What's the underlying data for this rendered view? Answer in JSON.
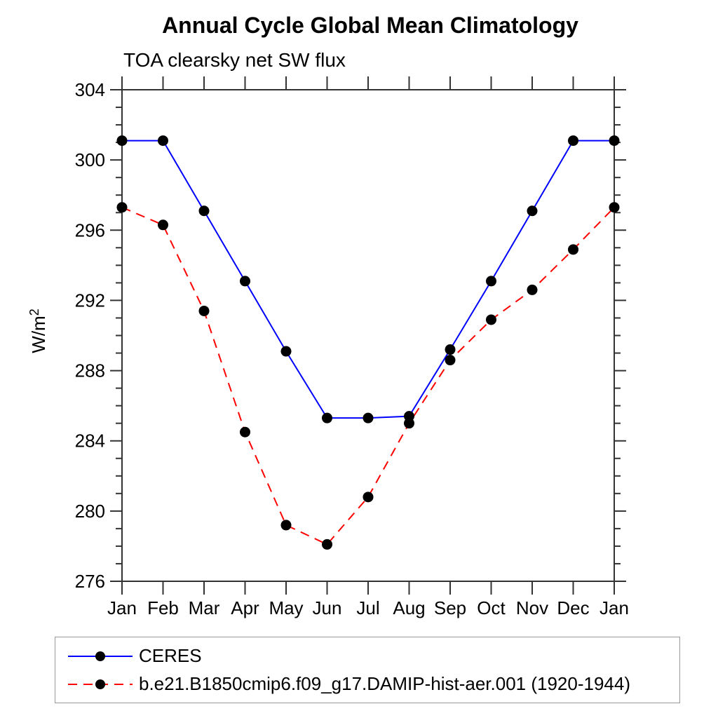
{
  "chart_data": {
    "type": "line",
    "title": "Annual Cycle Global Mean Climatology",
    "subtitle": "TOA clearsky net SW flux",
    "ylabel": "W/m",
    "ylabel_superscript": "2",
    "xlabel": "",
    "x_labels": [
      "Jan",
      "Feb",
      "Mar",
      "Apr",
      "May",
      "Jun",
      "Jul",
      "Aug",
      "Sep",
      "Oct",
      "Nov",
      "Dec",
      "Jan"
    ],
    "ylim": [
      276,
      304
    ],
    "ytick_major_step": 4,
    "ytick_minor_step": 1,
    "ytick_major_labels": [
      "276",
      "280",
      "284",
      "288",
      "292",
      "296",
      "300",
      "304"
    ],
    "grid": false,
    "legend_position": "bottom-left-box",
    "marker": "filled-circle",
    "marker_color": "#000000",
    "axis_color": "#333333",
    "series": [
      {
        "id": "ceres",
        "name": "CERES",
        "color": "#0000ff",
        "style": "solid",
        "values": [
          301.1,
          301.1,
          297.1,
          293.1,
          289.1,
          285.3,
          285.3,
          285.4,
          289.2,
          293.1,
          297.1,
          301.1,
          301.1
        ]
      },
      {
        "id": "model",
        "name": "b.e21.B1850cmip6.f09_g17.DAMIP-hist-aer.001 (1920-1944)",
        "color": "#ff0000",
        "style": "dashed",
        "values": [
          297.3,
          296.3,
          291.4,
          284.5,
          279.2,
          278.1,
          280.8,
          285.0,
          288.6,
          290.9,
          292.6,
          294.9,
          297.3
        ]
      }
    ]
  }
}
